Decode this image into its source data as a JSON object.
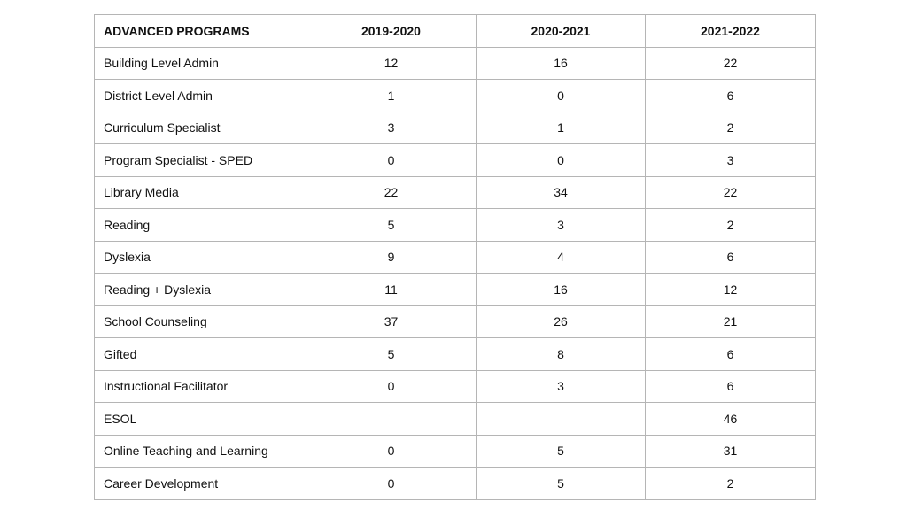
{
  "table": {
    "headers": [
      "ADVANCED PROGRAMS",
      "2019-2020",
      "2020-2021",
      "2021-2022"
    ],
    "rows": [
      [
        "Building Level Admin",
        "12",
        "16",
        "22"
      ],
      [
        "District Level Admin",
        "1",
        "0",
        "6"
      ],
      [
        "Curriculum Specialist",
        "3",
        "1",
        "2"
      ],
      [
        "Program Specialist - SPED",
        "0",
        "0",
        "3"
      ],
      [
        "Library Media",
        "22",
        "34",
        "22"
      ],
      [
        "Reading",
        "5",
        "3",
        "2"
      ],
      [
        "Dyslexia",
        "9",
        "4",
        "6"
      ],
      [
        "Reading + Dyslexia",
        "11",
        "16",
        "12"
      ],
      [
        "School Counseling",
        "37",
        "26",
        "21"
      ],
      [
        "Gifted",
        "5",
        "8",
        "6"
      ],
      [
        "Instructional Facilitator",
        "0",
        "3",
        "6"
      ],
      [
        "ESOL",
        "",
        "",
        "46"
      ],
      [
        "Online Teaching and Learning",
        "0",
        "5",
        "31"
      ],
      [
        "Career Development",
        "0",
        "5",
        "2"
      ]
    ]
  }
}
